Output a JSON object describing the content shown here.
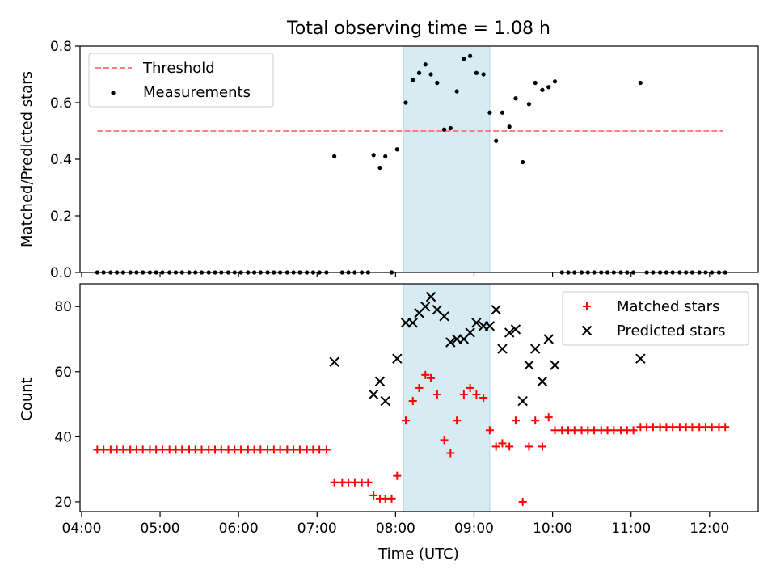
{
  "figure_title": "Total observing time = 1.08 h",
  "colors": {
    "threshold": "#ff7f7f",
    "measurement": "#000000",
    "matched": "#ff0000",
    "predicted": "#000000",
    "highlight": "#add8e6"
  },
  "chart_data": [
    {
      "type": "scatter",
      "title": "Total observing time = 1.08 h",
      "xlabel": "",
      "ylabel": "Matched/Predicted stars",
      "xlim": [
        3.98,
        12.62
      ],
      "ylim": [
        0.0,
        0.8
      ],
      "yticks": [
        0.0,
        0.2,
        0.4,
        0.6,
        0.8
      ],
      "yticklabels": [
        "0.0",
        "0.2",
        "0.4",
        "0.6",
        "0.8"
      ],
      "shaded_x": [
        8.1,
        9.2
      ],
      "legend": {
        "location": "upper-left",
        "entries": [
          "Threshold",
          "Measurements"
        ]
      },
      "threshold": {
        "name": "Threshold",
        "y": 0.5,
        "x_range": [
          4.2,
          12.17
        ],
        "style": "dashed"
      },
      "measurements": {
        "name": "Measurements",
        "x": [
          4.2,
          4.28,
          4.37,
          4.45,
          4.53,
          4.62,
          4.7,
          4.78,
          4.87,
          4.95,
          5.03,
          5.12,
          5.2,
          5.28,
          5.37,
          5.45,
          5.53,
          5.62,
          5.7,
          5.78,
          5.87,
          5.95,
          6.03,
          6.12,
          6.2,
          6.28,
          6.37,
          6.45,
          6.53,
          6.62,
          6.7,
          6.78,
          6.87,
          6.95,
          7.03,
          7.12,
          7.22,
          7.32,
          7.4,
          7.48,
          7.57,
          7.65,
          7.72,
          7.8,
          7.87,
          7.95,
          8.02,
          8.13,
          8.22,
          8.3,
          8.38,
          8.45,
          8.53,
          8.62,
          8.7,
          8.78,
          8.87,
          8.95,
          9.03,
          9.12,
          9.2,
          9.28,
          9.36,
          9.45,
          9.53,
          9.62,
          9.7,
          9.78,
          9.87,
          9.95,
          10.03,
          10.12,
          10.2,
          10.28,
          10.37,
          10.45,
          10.53,
          10.62,
          10.7,
          10.78,
          10.87,
          10.95,
          11.03,
          11.12,
          11.2,
          11.28,
          11.37,
          11.45,
          11.53,
          11.62,
          11.7,
          11.78,
          11.87,
          11.95,
          12.03,
          12.12,
          12.2
        ],
        "y": [
          0,
          0,
          0,
          0,
          0,
          0,
          0,
          0,
          0,
          0,
          0,
          0,
          0,
          0,
          0,
          0,
          0,
          0,
          0,
          0,
          0,
          0,
          0,
          0,
          0,
          0,
          0,
          0,
          0,
          0,
          0,
          0,
          0,
          0,
          0,
          0,
          0.41,
          0,
          0,
          0,
          0,
          0,
          0.415,
          0.37,
          0.41,
          0,
          0.435,
          0.6,
          0.68,
          0.705,
          0.735,
          0.7,
          0.67,
          0.505,
          0.51,
          0.64,
          0.755,
          0.765,
          0.705,
          0.7,
          0.565,
          0.465,
          0.565,
          0.515,
          0.615,
          0.39,
          0.595,
          0.67,
          0.645,
          0.655,
          0.675,
          0,
          0,
          0,
          0,
          0,
          0,
          0,
          0,
          0,
          0,
          0,
          0,
          0.67,
          0,
          0,
          0,
          0,
          0,
          0,
          0,
          0,
          0,
          0,
          0,
          0,
          0
        ]
      }
    },
    {
      "type": "scatter",
      "title": "",
      "xlabel": "Time (UTC)",
      "ylabel": "Count",
      "xlim": [
        3.98,
        12.62
      ],
      "ylim": [
        17,
        87
      ],
      "yticks": [
        20,
        40,
        60,
        80
      ],
      "yticklabels": [
        "20",
        "40",
        "60",
        "80"
      ],
      "xticks": [
        4,
        5,
        6,
        7,
        8,
        9,
        10,
        11,
        12
      ],
      "xticklabels": [
        "04:00",
        "05:00",
        "06:00",
        "07:00",
        "08:00",
        "09:00",
        "10:00",
        "11:00",
        "12:00"
      ],
      "shaded_x": [
        8.1,
        9.2
      ],
      "legend": {
        "location": "upper-right",
        "entries": [
          "Matched stars",
          "Predicted stars"
        ]
      },
      "matched": {
        "name": "Matched stars",
        "x": [
          4.2,
          4.28,
          4.37,
          4.45,
          4.53,
          4.62,
          4.7,
          4.78,
          4.87,
          4.95,
          5.03,
          5.12,
          5.2,
          5.28,
          5.37,
          5.45,
          5.53,
          5.62,
          5.7,
          5.78,
          5.87,
          5.95,
          6.03,
          6.12,
          6.2,
          6.28,
          6.37,
          6.45,
          6.53,
          6.62,
          6.7,
          6.78,
          6.87,
          6.95,
          7.03,
          7.12,
          7.22,
          7.32,
          7.4,
          7.48,
          7.57,
          7.65,
          7.72,
          7.8,
          7.87,
          7.95,
          8.02,
          8.13,
          8.22,
          8.3,
          8.38,
          8.45,
          8.53,
          8.62,
          8.7,
          8.78,
          8.87,
          8.95,
          9.03,
          9.12,
          9.2,
          9.28,
          9.36,
          9.45,
          9.53,
          9.62,
          9.7,
          9.78,
          9.87,
          9.95,
          10.03,
          10.12,
          10.2,
          10.28,
          10.37,
          10.45,
          10.53,
          10.62,
          10.7,
          10.78,
          10.87,
          10.95,
          11.03,
          11.12,
          11.2,
          11.28,
          11.37,
          11.45,
          11.53,
          11.62,
          11.7,
          11.78,
          11.87,
          11.95,
          12.03,
          12.12,
          12.2
        ],
        "y": [
          36,
          36,
          36,
          36,
          36,
          36,
          36,
          36,
          36,
          36,
          36,
          36,
          36,
          36,
          36,
          36,
          36,
          36,
          36,
          36,
          36,
          36,
          36,
          36,
          36,
          36,
          36,
          36,
          36,
          36,
          36,
          36,
          36,
          36,
          36,
          36,
          26,
          26,
          26,
          26,
          26,
          26,
          22,
          21,
          21,
          21,
          28,
          45,
          51,
          55,
          59,
          58,
          53,
          39,
          35,
          45,
          53,
          55,
          53,
          52,
          42,
          37,
          38,
          37,
          45,
          20,
          37,
          45,
          37,
          46,
          42,
          42,
          42,
          42,
          42,
          42,
          42,
          42,
          42,
          42,
          42,
          42,
          42,
          43,
          43,
          43,
          43,
          43,
          43,
          43,
          43,
          43,
          43,
          43,
          43,
          43,
          43
        ]
      },
      "predicted": {
        "name": "Predicted stars",
        "x": [
          7.22,
          7.72,
          7.8,
          7.87,
          8.02,
          8.13,
          8.22,
          8.3,
          8.38,
          8.45,
          8.53,
          8.62,
          8.7,
          8.78,
          8.87,
          8.95,
          9.03,
          9.12,
          9.2,
          9.28,
          9.36,
          9.45,
          9.53,
          9.62,
          9.7,
          9.78,
          9.87,
          9.95,
          10.03,
          11.12
        ],
        "y": [
          63,
          53,
          57,
          51,
          64,
          75,
          75,
          78,
          80,
          83,
          79,
          77,
          69,
          70,
          70,
          72,
          75,
          74,
          74,
          79,
          67,
          72,
          73,
          51,
          62,
          67,
          57,
          70,
          62,
          64
        ]
      }
    }
  ]
}
